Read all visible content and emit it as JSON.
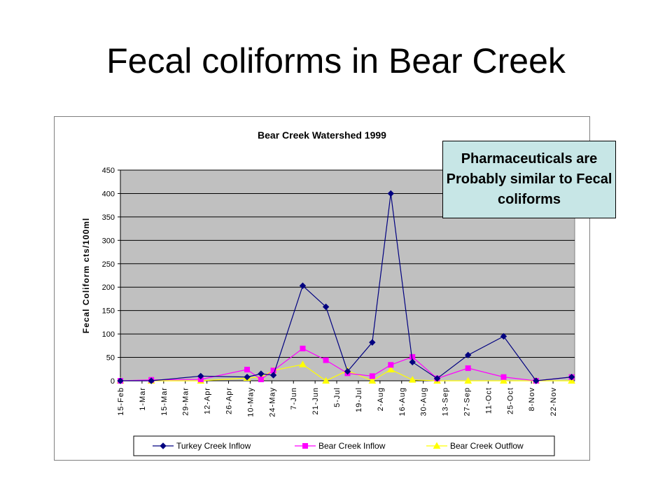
{
  "slide": {
    "title": "Fecal coliforms in Bear Creek",
    "callout_text": "Pharmaceuticals are Probably similar to Fecal coliforms"
  },
  "colors": {
    "plot_background": "#c0c0c0",
    "callout_background": "#c7e6e6",
    "turkey_inflow": "#000080",
    "bear_inflow": "#ff00ff",
    "bear_outflow": "#ffff00"
  },
  "chart_data": {
    "type": "line",
    "title": "Bear Creek Watershed 1999",
    "ylabel": "Fecal Coliform cts/100ml",
    "xlabel": "",
    "ylim": [
      0,
      450
    ],
    "yticks": [
      0,
      50,
      100,
      150,
      200,
      250,
      300,
      350,
      400,
      450
    ],
    "xlim": [
      "1999-02-15",
      "1999-12-06"
    ],
    "xtick_labels": [
      "15-Feb",
      "1-Mar",
      "15-Mar",
      "29-Mar",
      "12-Apr",
      "26-Apr",
      "10-May",
      "24-May",
      "7-Jun",
      "21-Jun",
      "5-Jul",
      "19-Jul",
      "2-Aug",
      "16-Aug",
      "30-Aug",
      "13-Sep",
      "27-Sep",
      "11-Oct",
      "25-Oct",
      "8-Nov",
      "22-Nov"
    ],
    "xtick_dates": [
      "1999-02-15",
      "1999-03-01",
      "1999-03-15",
      "1999-03-29",
      "1999-04-12",
      "1999-04-26",
      "1999-05-10",
      "1999-05-24",
      "1999-06-07",
      "1999-06-21",
      "1999-07-05",
      "1999-07-19",
      "1999-08-02",
      "1999-08-16",
      "1999-08-30",
      "1999-09-13",
      "1999-09-27",
      "1999-10-11",
      "1999-10-25",
      "1999-11-08",
      "1999-11-22"
    ],
    "grid": true,
    "legend_position": "bottom",
    "series": [
      {
        "name": "Turkey Creek Inflow",
        "marker": "diamond",
        "points": [
          {
            "x": "1999-02-15",
            "y": 0
          },
          {
            "x": "1999-03-07",
            "y": 0
          },
          {
            "x": "1999-04-08",
            "y": 10
          },
          {
            "x": "1999-05-08",
            "y": 8
          },
          {
            "x": "1999-05-17",
            "y": 15
          },
          {
            "x": "1999-05-25",
            "y": 12
          },
          {
            "x": "1999-06-13",
            "y": 203
          },
          {
            "x": "1999-06-28",
            "y": 158
          },
          {
            "x": "1999-07-12",
            "y": 20
          },
          {
            "x": "1999-07-28",
            "y": 82
          },
          {
            "x": "1999-08-09",
            "y": 400
          },
          {
            "x": "1999-08-23",
            "y": 40
          },
          {
            "x": "1999-09-08",
            "y": 5
          },
          {
            "x": "1999-09-28",
            "y": 55
          },
          {
            "x": "1999-10-21",
            "y": 95
          },
          {
            "x": "1999-11-11",
            "y": 0
          },
          {
            "x": "1999-12-04",
            "y": 8
          }
        ]
      },
      {
        "name": "Bear Creek Inflow",
        "marker": "square",
        "points": [
          {
            "x": "1999-02-15",
            "y": 0
          },
          {
            "x": "1999-03-07",
            "y": 2
          },
          {
            "x": "1999-04-08",
            "y": 3
          },
          {
            "x": "1999-05-08",
            "y": 24
          },
          {
            "x": "1999-05-17",
            "y": 3
          },
          {
            "x": "1999-05-25",
            "y": 22
          },
          {
            "x": "1999-06-13",
            "y": 69
          },
          {
            "x": "1999-06-28",
            "y": 44
          },
          {
            "x": "1999-07-12",
            "y": 16
          },
          {
            "x": "1999-07-28",
            "y": 10
          },
          {
            "x": "1999-08-09",
            "y": 34
          },
          {
            "x": "1999-08-23",
            "y": 51
          },
          {
            "x": "1999-09-08",
            "y": 5
          },
          {
            "x": "1999-09-28",
            "y": 27
          },
          {
            "x": "1999-10-21",
            "y": 8
          },
          {
            "x": "1999-11-11",
            "y": 0
          },
          {
            "x": "1999-12-04",
            "y": 8
          }
        ]
      },
      {
        "name": "Bear Creek Outflow",
        "marker": "triangle",
        "points": [
          {
            "x": "1999-02-15",
            "y": 0
          },
          {
            "x": "1999-03-07",
            "y": 0
          },
          {
            "x": "1999-04-08",
            "y": 0
          },
          {
            "x": "1999-05-08",
            "y": 6
          },
          {
            "x": "1999-05-17",
            "y": 8
          },
          {
            "x": "1999-05-25",
            "y": 22
          },
          {
            "x": "1999-06-13",
            "y": 35
          },
          {
            "x": "1999-06-28",
            "y": 0
          },
          {
            "x": "1999-07-12",
            "y": 22
          },
          {
            "x": "1999-07-28",
            "y": 0
          },
          {
            "x": "1999-08-09",
            "y": 24
          },
          {
            "x": "1999-08-23",
            "y": 2
          },
          {
            "x": "1999-09-08",
            "y": 0
          },
          {
            "x": "1999-09-28",
            "y": 0
          },
          {
            "x": "1999-10-21",
            "y": 0
          },
          {
            "x": "1999-11-11",
            "y": 0
          },
          {
            "x": "1999-12-04",
            "y": 0
          }
        ]
      }
    ]
  }
}
